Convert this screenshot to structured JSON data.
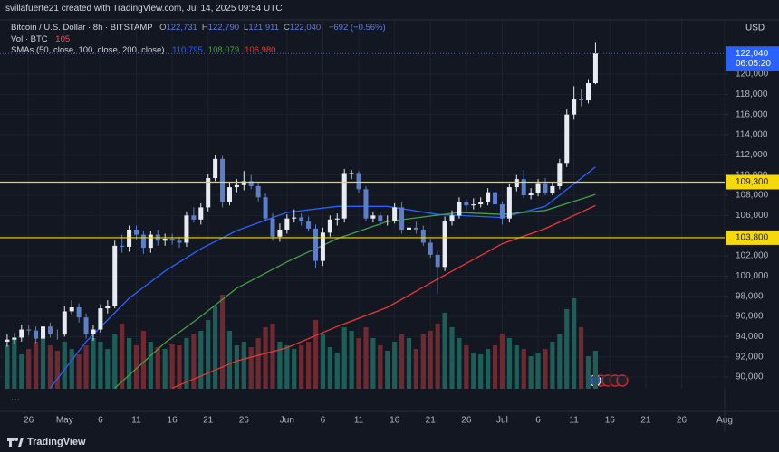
{
  "header": "svillafuerte21 created with TradingView.com, Jul 14, 2025 09:54 UTC",
  "footer": "TradingView",
  "chart_data": {
    "type": "candlestick",
    "currency": "USD",
    "legend": {
      "symbol": "Bitcoin / U.S. Dollar · 8h · BITSTAMP",
      "ohlc": [
        {
          "key": "O",
          "value": "122,731"
        },
        {
          "key": "H",
          "value": "122,790"
        },
        {
          "key": "L",
          "value": "121,911"
        },
        {
          "key": "C",
          "value": "122,040"
        }
      ],
      "change": "−692 (−0.56%)",
      "volume_label": "Vol · BTC"
    },
    "sma_label": "SMAs (50, close, 100, close, 200, close)",
    "up_color": "#e8ecf2",
    "down_color": "#5d7fc9",
    "volume_up_color": "#1d5e58",
    "volume_down_color": "#6e2a30",
    "x": [
      "Apr 23",
      "Apr 24",
      "Apr 25",
      "Apr 26",
      "Apr 27",
      "Apr 28",
      "Apr 29",
      "Apr 30",
      "May 1",
      "May 2",
      "May 3",
      "May 4",
      "May 5",
      "May 6",
      "May 7",
      "May 8",
      "May 9",
      "May 10",
      "May 11",
      "May 12",
      "May 13",
      "May 14",
      "May 15",
      "May 16",
      "May 17",
      "May 18",
      "May 19",
      "May 20",
      "May 21",
      "May 22",
      "May 23",
      "May 24",
      "May 25",
      "May 26",
      "May 27",
      "May 28",
      "May 29",
      "May 30",
      "May 31",
      "Jun 1",
      "Jun 2",
      "Jun 3",
      "Jun 4",
      "Jun 5",
      "Jun 6",
      "Jun 7",
      "Jun 8",
      "Jun 9",
      "Jun 10",
      "Jun 11",
      "Jun 12",
      "Jun 13",
      "Jun 14",
      "Jun 15",
      "Jun 16",
      "Jun 17",
      "Jun 18",
      "Jun 19",
      "Jun 20",
      "Jun 21",
      "Jun 22",
      "Jun 23",
      "Jun 24",
      "Jun 25",
      "Jun 26",
      "Jun 27",
      "Jun 28",
      "Jun 29",
      "Jun 30",
      "Jul 1",
      "Jul 2",
      "Jul 3",
      "Jul 4",
      "Jul 5",
      "Jul 6",
      "Jul 7",
      "Jul 8",
      "Jul 9",
      "Jul 10",
      "Jul 11",
      "Jul 12",
      "Jul 13",
      "Jul 14"
    ],
    "open": [
      93500,
      93700,
      93900,
      94700,
      94600,
      93800,
      95000,
      94300,
      94200,
      96500,
      96900,
      95900,
      94300,
      94700,
      96800,
      97000,
      103000,
      102900,
      104600,
      104100,
      102800,
      104100,
      103500,
      103700,
      103500,
      103300,
      106000,
      105600,
      106800,
      109700,
      111600,
      107300,
      108800,
      109000,
      109400,
      108900,
      107800,
      105700,
      103900,
      104600,
      105700,
      105800,
      105400,
      104700,
      101500,
      104300,
      105600,
      105700,
      110200,
      110200,
      108600,
      105700,
      106000,
      105400,
      105500,
      106800,
      104600,
      104800,
      104600,
      103300,
      102100,
      100900,
      105400,
      106000,
      107300,
      107000,
      107100,
      107300,
      108300,
      107100,
      105700,
      108800,
      109600,
      108000,
      108200,
      109200,
      108200,
      108900,
      111200,
      116000,
      117500,
      117400,
      119100
    ],
    "high": [
      94200,
      94400,
      95200,
      95100,
      95000,
      95500,
      95400,
      94700,
      97000,
      97600,
      97300,
      96300,
      95100,
      97200,
      97600,
      103500,
      104100,
      105000,
      105000,
      104500,
      104500,
      104600,
      104200,
      104200,
      103900,
      106400,
      106800,
      107200,
      110100,
      112000,
      111900,
      109300,
      109600,
      110400,
      110000,
      109300,
      108200,
      106200,
      105200,
      106100,
      106600,
      106200,
      105900,
      105100,
      104800,
      106000,
      106200,
      110600,
      110500,
      110400,
      108900,
      106400,
      106400,
      106000,
      107200,
      107300,
      105300,
      105400,
      105000,
      103700,
      102500,
      105900,
      106500,
      107800,
      107600,
      107700,
      107800,
      108700,
      108600,
      107400,
      109100,
      110000,
      110500,
      108700,
      109600,
      109700,
      109300,
      111600,
      116500,
      118800,
      118500,
      119500,
      123100
    ],
    "low": [
      93000,
      93300,
      93500,
      94100,
      93300,
      93400,
      93900,
      93700,
      94000,
      96100,
      95400,
      93800,
      93600,
      94400,
      96300,
      96800,
      102300,
      102400,
      103600,
      102200,
      102300,
      103000,
      103000,
      103100,
      102800,
      102900,
      105300,
      105100,
      106400,
      109400,
      106800,
      107000,
      108300,
      108500,
      108600,
      107400,
      105400,
      103500,
      103400,
      104200,
      105300,
      105000,
      104400,
      100800,
      101000,
      103900,
      105000,
      105300,
      109600,
      108200,
      105400,
      105300,
      105000,
      105000,
      105200,
      104200,
      104200,
      104200,
      103000,
      101800,
      98200,
      100500,
      105000,
      105700,
      106500,
      106600,
      106800,
      107000,
      106800,
      105100,
      105300,
      108400,
      107700,
      107600,
      107900,
      108000,
      108000,
      108600,
      110800,
      115500,
      116800,
      117100,
      119000
    ],
    "close": [
      93700,
      93900,
      94700,
      94600,
      93800,
      95000,
      94300,
      94200,
      96500,
      96900,
      95900,
      94300,
      94700,
      96800,
      97000,
      103000,
      102900,
      104600,
      104100,
      102800,
      104100,
      103500,
      103700,
      103500,
      103300,
      106000,
      105600,
      106800,
      109700,
      111600,
      107300,
      108800,
      109000,
      109400,
      108900,
      107800,
      105700,
      103900,
      104600,
      105700,
      105800,
      105400,
      104700,
      101500,
      104300,
      105600,
      105700,
      110200,
      110200,
      108600,
      105700,
      106000,
      105400,
      105500,
      106800,
      104600,
      104800,
      104600,
      103300,
      102100,
      100900,
      105400,
      106000,
      107300,
      107000,
      107100,
      107300,
      108300,
      107100,
      105700,
      108800,
      109600,
      108000,
      108200,
      109200,
      108200,
      108900,
      111200,
      116000,
      117500,
      117400,
      119100,
      122040
    ],
    "volume": [
      120,
      140,
      95,
      110,
      130,
      150,
      120,
      105,
      130,
      110,
      95,
      120,
      140,
      130,
      110,
      150,
      180,
      140,
      120,
      160,
      130,
      115,
      110,
      125,
      120,
      140,
      150,
      160,
      190,
      230,
      260,
      160,
      120,
      130,
      115,
      140,
      170,
      180,
      130,
      120,
      110,
      120,
      130,
      190,
      150,
      115,
      100,
      170,
      160,
      140,
      170,
      140,
      120,
      105,
      130,
      150,
      140,
      110,
      150,
      160,
      180,
      210,
      170,
      140,
      120,
      100,
      95,
      110,
      120,
      150,
      140,
      120,
      110,
      90,
      100,
      110,
      130,
      150,
      220,
      250,
      170,
      90,
      105
    ],
    "volume_lim": [
      0,
      300
    ],
    "sma": [
      {
        "value_label": "110,795",
        "color": "#2962ff",
        "x": [
          "Apr 29",
          "May 4",
          "May 10",
          "May 15",
          "May 20",
          "May 25",
          "Jun 1",
          "Jun 8",
          "Jun 15",
          "Jun 22",
          "Jul 1",
          "Jul 7",
          "Jul 14"
        ],
        "values": [
          88900,
          93500,
          97800,
          100500,
          102700,
          104500,
          106300,
          106900,
          106900,
          106100,
          105800,
          106900,
          110795
        ]
      },
      {
        "value_label": "108,079",
        "color": "#43a047",
        "x": [
          "May 8",
          "May 15",
          "May 20",
          "May 25",
          "Jun 1",
          "Jun 8",
          "Jun 15",
          "Jun 25",
          "Jul 1",
          "Jul 7",
          "Jul 14"
        ],
        "values": [
          88900,
          93400,
          96000,
          98800,
          101400,
          103700,
          105400,
          106300,
          106100,
          106500,
          108079
        ]
      },
      {
        "value_label": "106,980",
        "color": "#e53935",
        "x": [
          "May 16",
          "May 25",
          "Jun 1",
          "Jun 8",
          "Jun 15",
          "Jun 22",
          "Jul 1",
          "Jul 7",
          "Jul 14"
        ],
        "values": [
          88900,
          91600,
          92900,
          95000,
          96900,
          99700,
          103200,
          104700,
          106980
        ]
      }
    ],
    "levels": [
      {
        "value": 109300,
        "label": "109,300"
      },
      {
        "value": 103800,
        "label": "103,800"
      }
    ],
    "level_color": "#f5d90a",
    "last_price": {
      "value": 122040,
      "label": "122,040",
      "countdown": "06:05:20",
      "color": "#2962ff"
    },
    "xlim": [
      "Apr 22",
      "Aug 1"
    ],
    "xticks": [
      {
        "value": "Apr 26",
        "label": "26"
      },
      {
        "value": "May 1",
        "label": "May"
      },
      {
        "value": "May 6",
        "label": "6"
      },
      {
        "value": "May 11",
        "label": "11"
      },
      {
        "value": "May 16",
        "label": "16"
      },
      {
        "value": "May 21",
        "label": "21"
      },
      {
        "value": "May 26",
        "label": "26"
      },
      {
        "value": "Jun 1",
        "label": "Jun"
      },
      {
        "value": "Jun 6",
        "label": "6"
      },
      {
        "value": "Jun 11",
        "label": "11"
      },
      {
        "value": "Jun 16",
        "label": "16"
      },
      {
        "value": "Jun 21",
        "label": "21"
      },
      {
        "value": "Jun 26",
        "label": "26"
      },
      {
        "value": "Jul 1",
        "label": "Jul"
      },
      {
        "value": "Jul 6",
        "label": "6"
      },
      {
        "value": "Jul 11",
        "label": "11"
      },
      {
        "value": "Jul 16",
        "label": "16"
      },
      {
        "value": "Jul 21",
        "label": "21"
      },
      {
        "value": "Jul 26",
        "label": "26"
      },
      {
        "value": "Aug 1",
        "label": "Aug"
      }
    ],
    "ylim": [
      88840,
      125550
    ],
    "yticks": [
      {
        "value": 90000,
        "label": "90,000"
      },
      {
        "value": 92000,
        "label": "92,000"
      },
      {
        "value": 94000,
        "label": "94,000"
      },
      {
        "value": 96000,
        "label": "96,000"
      },
      {
        "value": 98000,
        "label": "98,000"
      },
      {
        "value": 100000,
        "label": "100,000"
      },
      {
        "value": 102000,
        "label": "102,000"
      },
      {
        "value": 104000,
        "label": "104,000"
      },
      {
        "value": 106000,
        "label": "106,000"
      },
      {
        "value": 108000,
        "label": "108,000"
      },
      {
        "value": 110000,
        "label": "110,000"
      },
      {
        "value": 112000,
        "label": "112,000"
      },
      {
        "value": 114000,
        "label": "114,000"
      },
      {
        "value": 116000,
        "label": "116,000"
      },
      {
        "value": 118000,
        "label": "118,000"
      },
      {
        "value": 120000,
        "label": "120,000"
      }
    ],
    "grid": true
  }
}
